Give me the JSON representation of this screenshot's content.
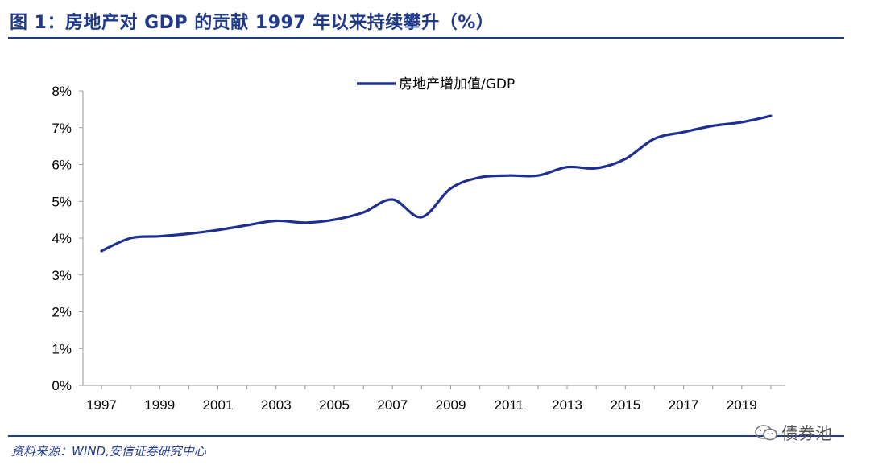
{
  "figure": {
    "title": "图 1：房地产对 GDP 的贡献 1997 年以来持续攀升（%）",
    "source": "资料来源：WIND,安信证券研究中心",
    "watermark": "债券池",
    "accent_color": "#1f3a8a"
  },
  "chart_data": {
    "type": "line",
    "title": "房地产对 GDP 的贡献 1997 年以来持续攀升（%）",
    "xlabel": "",
    "ylabel": "",
    "ylim": [
      0,
      8
    ],
    "xlim": [
      1997,
      2020.5
    ],
    "yticks": [
      "0%",
      "1%",
      "2%",
      "3%",
      "4%",
      "5%",
      "6%",
      "7%",
      "8%"
    ],
    "xticks": [
      "1997",
      "1999",
      "2001",
      "2003",
      "2005",
      "2007",
      "2009",
      "2011",
      "2013",
      "2015",
      "2017",
      "2019"
    ],
    "legend_position": "top",
    "series": [
      {
        "name": "房地产增加值/GDP",
        "color": "#1f2f8f",
        "x": [
          1997,
          1998,
          1999,
          2000,
          2001,
          2002,
          2003,
          2004,
          2005,
          2006,
          2007,
          2008,
          2009,
          2010,
          2011,
          2012,
          2013,
          2014,
          2015,
          2016,
          2017,
          2018,
          2019,
          2020
        ],
        "values": [
          3.65,
          4.0,
          4.05,
          4.12,
          4.22,
          4.35,
          4.47,
          4.42,
          4.5,
          4.7,
          5.05,
          4.57,
          5.35,
          5.65,
          5.7,
          5.7,
          5.93,
          5.9,
          6.15,
          6.7,
          6.88,
          7.05,
          7.15,
          7.32
        ]
      }
    ]
  }
}
